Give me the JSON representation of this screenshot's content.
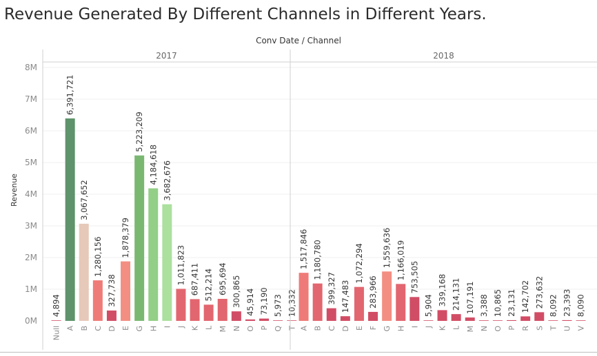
{
  "title": "Revenue Generated By Different Channels in Different Years.",
  "column_header": "Conv Date / Channel",
  "colors": {
    "dark_green": "#5e936b",
    "green": "#7ab872",
    "mid_green": "#93cf87",
    "light_green": "#abe09e",
    "beige": "#e7c9b9",
    "salmon": "#f28f82",
    "light_red": "#ef7b78",
    "red": "#e2666f",
    "dark_red": "#d14d65"
  },
  "chart_data": {
    "type": "bar",
    "ylabel": "Revenue",
    "xlabel": "",
    "ylim": [
      0,
      8000000
    ],
    "yticks": [
      "0M",
      "1M",
      "2M",
      "3M",
      "4M",
      "5M",
      "6M",
      "7M",
      "8M"
    ],
    "grid": true,
    "panes": [
      {
        "name": "2017",
        "categories": [
          "Null",
          "A",
          "B",
          "C",
          "D",
          "E",
          "G",
          "H",
          "I",
          "J",
          "K",
          "L",
          "M",
          "N",
          "O",
          "P",
          "Q",
          "T"
        ],
        "values": [
          4894,
          6391721,
          3067652,
          1280156,
          327738,
          1878379,
          5223209,
          4184618,
          3682676,
          1011823,
          687411,
          512214,
          695694,
          300865,
          45914,
          73190,
          5973,
          10332
        ],
        "labels": [
          "4,894",
          "6,391,721",
          "3,067,652",
          "1,280,156",
          "327,738",
          "1,878,379",
          "5,223,209",
          "4,184,618",
          "3,682,676",
          "1,011,823",
          "687,411",
          "512,214",
          "695,694",
          "300,865",
          "45,914",
          "73,190",
          "5,973",
          "10,332"
        ],
        "colors": [
          "#d14d65",
          "#5e936b",
          "#e7c9b9",
          "#ef7b78",
          "#d14d65",
          "#f28f82",
          "#7ab872",
          "#93cf87",
          "#abe09e",
          "#e2666f",
          "#e2666f",
          "#e2666f",
          "#e2666f",
          "#d14d65",
          "#d14d65",
          "#d14d65",
          "#d14d65",
          "#d14d65"
        ]
      },
      {
        "name": "2018",
        "categories": [
          "A",
          "B",
          "C",
          "D",
          "E",
          "F",
          "G",
          "H",
          "I",
          "J",
          "K",
          "L",
          "M",
          "N",
          "O",
          "P",
          "R",
          "S",
          "T",
          "U",
          "V"
        ],
        "values": [
          1517846,
          1180780,
          399327,
          147483,
          1072294,
          283966,
          1559636,
          1166019,
          753505,
          5904,
          339168,
          214131,
          107191,
          3388,
          10865,
          23131,
          142702,
          273632,
          8092,
          23393,
          8090
        ],
        "labels": [
          "1,517,846",
          "1,180,780",
          "399,327",
          "147,483",
          "1,072,294",
          "283,966",
          "1,559,636",
          "1,166,019",
          "753,505",
          "5,904",
          "339,168",
          "214,131",
          "107,191",
          "3,388",
          "10,865",
          "23,131",
          "142,702",
          "273,632",
          "8,092",
          "23,393",
          "8,090"
        ],
        "colors": [
          "#ef7b78",
          "#e2666f",
          "#d14d65",
          "#d14d65",
          "#e2666f",
          "#d14d65",
          "#f28f82",
          "#e2666f",
          "#d14d65",
          "#d14d65",
          "#d14d65",
          "#d14d65",
          "#d14d65",
          "#d14d65",
          "#d14d65",
          "#d14d65",
          "#d14d65",
          "#d14d65",
          "#d14d65",
          "#d14d65",
          "#d14d65"
        ]
      }
    ]
  }
}
